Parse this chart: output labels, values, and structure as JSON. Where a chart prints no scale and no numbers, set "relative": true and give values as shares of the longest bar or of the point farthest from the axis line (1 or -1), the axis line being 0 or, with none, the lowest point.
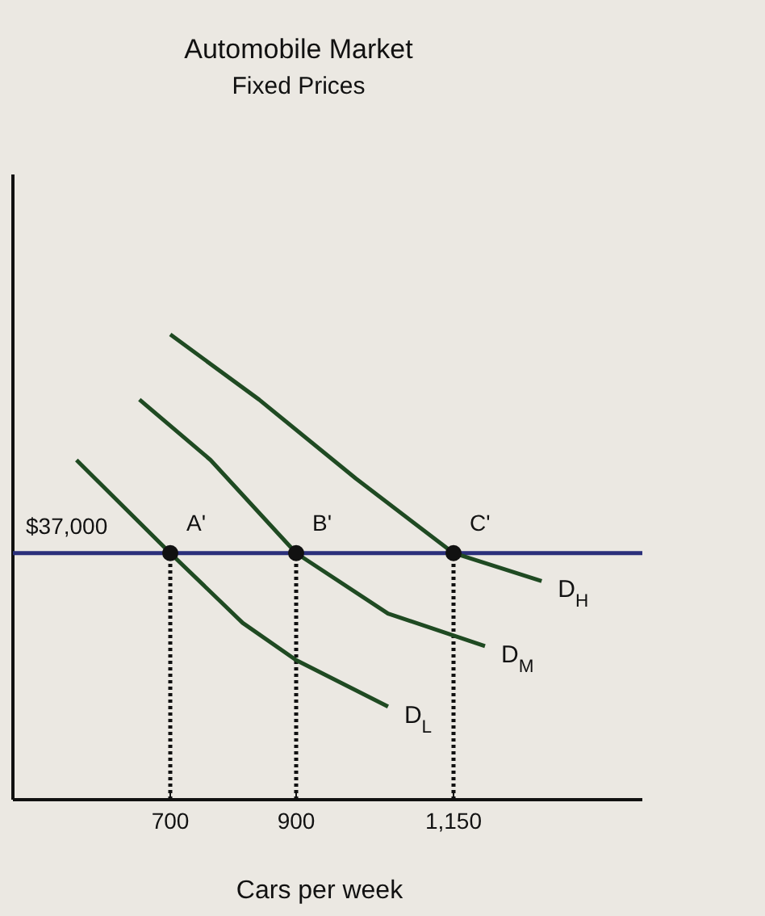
{
  "chart_data": {
    "type": "line",
    "title": "Automobile Market",
    "subtitle": "Fixed Prices",
    "xlabel": "Cars per week",
    "relative": true,
    "xlim": [
      450,
      1450
    ],
    "xticks": [
      700,
      900,
      {
        "value": 1150,
        "label": "1,150"
      }
    ],
    "legend": false,
    "grid": false,
    "series": [
      {
        "name": "D$_{L}$",
        "color": "#1f4a22",
        "x": [
          551,
          700,
          815,
          900,
          1046
        ],
        "values": [
          0.73,
          0.53,
          0.38,
          0.3,
          0.2
        ]
      },
      {
        "name": "D$_{M}$",
        "color": "#1f4a22",
        "x": [
          651,
          764,
          900,
          1046,
          1200
        ],
        "values": [
          0.86,
          0.73,
          0.53,
          0.4,
          0.33
        ]
      },
      {
        "name": "D$_{H}$",
        "color": "#1f4a22",
        "x": [
          700,
          841,
          995,
          1150,
          1290
        ],
        "values": [
          1.0,
          0.86,
          0.69,
          0.53,
          0.47
        ]
      },
      {
        "type": "scatter",
        "marker": "circle",
        "color": "#111111",
        "x": [
          700,
          900,
          1150
        ],
        "values": [
          0.53,
          0.53,
          0.53
        ]
      }
    ],
    "ref_lines": [
      {
        "axis": "y",
        "value": 0.53,
        "color": "#2a2f7a",
        "line_style": "solid"
      },
      {
        "axis": "x",
        "value": 700,
        "color": "#111111",
        "line_style": "dotted"
      },
      {
        "axis": "x",
        "value": 900,
        "color": "#111111",
        "line_style": "dotted"
      },
      {
        "axis": "x",
        "value": 1150,
        "color": "#111111",
        "line_style": "dotted"
      }
    ],
    "annotations": [
      {
        "text": "$37,000",
        "y": 0.53
      },
      {
        "text": "A'",
        "x": 700,
        "y": 0.53
      },
      {
        "text": "B'",
        "x": 900,
        "y": 0.53
      },
      {
        "text": "C'",
        "x": 1150,
        "y": 0.53
      }
    ]
  }
}
